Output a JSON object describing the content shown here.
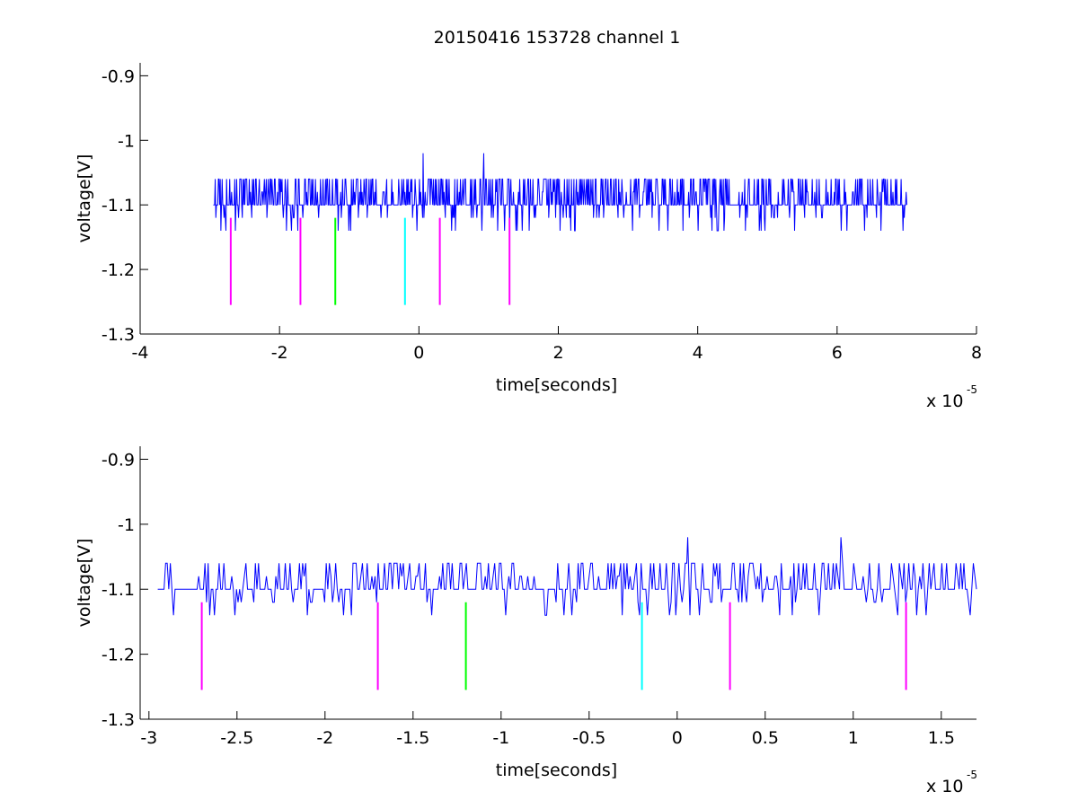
{
  "figure": {
    "title": "20150416 153728 channel 1"
  },
  "chart_data": [
    {
      "type": "line",
      "title": "20150416 153728 channel 1",
      "xlabel": "time[seconds]",
      "ylabel": "voltage[V]",
      "x_multiplier": "x 10",
      "x_exponent": "-5",
      "xlim": [
        -4,
        8
      ],
      "ylim": [
        -1.3,
        -0.88
      ],
      "xticks": [
        -4,
        -2,
        0,
        2,
        4,
        6,
        8
      ],
      "xtick_labels": [
        "-4",
        "-2",
        "0",
        "2",
        "4",
        "6",
        "8"
      ],
      "yticks": [
        -1.3,
        -1.2,
        -1.1,
        -1,
        -0.9
      ],
      "ytick_labels": [
        "-1.3",
        "-1.2",
        "-1.1",
        "-1",
        "-0.9"
      ],
      "grid": false,
      "series": [
        {
          "style": "signal",
          "color": "#0000ff",
          "x_start": -2.95,
          "x_end": 7.0,
          "levels": [
            -1.06,
            -1.08,
            -1.1,
            -1.12,
            -1.14
          ],
          "baseline": -1.1,
          "spikes": [
            {
              "x": 0.06,
              "y": -1.02
            },
            {
              "x": 0.93,
              "y": -1.02
            }
          ]
        }
      ],
      "markers": [
        {
          "x": -2.7,
          "y_top": -1.12,
          "y_bottom": -1.255,
          "color": "#ff00ff"
        },
        {
          "x": -1.7,
          "y_top": -1.12,
          "y_bottom": -1.255,
          "color": "#ff00ff"
        },
        {
          "x": -1.2,
          "y_top": -1.12,
          "y_bottom": -1.255,
          "color": "#00ff00"
        },
        {
          "x": -0.2,
          "y_top": -1.12,
          "y_bottom": -1.255,
          "color": "#00ffff"
        },
        {
          "x": 0.3,
          "y_top": -1.12,
          "y_bottom": -1.255,
          "color": "#ff00ff"
        },
        {
          "x": 1.3,
          "y_top": -1.12,
          "y_bottom": -1.255,
          "color": "#ff00ff"
        }
      ]
    },
    {
      "type": "line",
      "title": "",
      "xlabel": "time[seconds]",
      "ylabel": "voltage[V]",
      "x_multiplier": "x 10",
      "x_exponent": "-5",
      "xlim": [
        -3.05,
        1.7
      ],
      "ylim": [
        -1.3,
        -0.88
      ],
      "xticks": [
        -3,
        -2.5,
        -2,
        -1.5,
        -1,
        -0.5,
        0,
        0.5,
        1,
        1.5
      ],
      "xtick_labels": [
        "-3",
        "-2.5",
        "-2",
        "-1.5",
        "-1",
        "-0.5",
        "0",
        "0.5",
        "1",
        "1.5"
      ],
      "yticks": [
        -1.3,
        -1.2,
        -1.1,
        -1,
        -0.9
      ],
      "ytick_labels": [
        "-1.3",
        "-1.2",
        "-1.1",
        "-1",
        "-0.9"
      ],
      "grid": false,
      "series": [
        {
          "style": "signal",
          "color": "#0000ff",
          "x_start": -2.95,
          "x_end": 1.7,
          "levels": [
            -1.06,
            -1.08,
            -1.1,
            -1.12,
            -1.14
          ],
          "baseline": -1.1,
          "spikes": [
            {
              "x": 0.06,
              "y": -1.02
            },
            {
              "x": 0.93,
              "y": -1.02
            }
          ]
        }
      ],
      "markers": [
        {
          "x": -2.7,
          "y_top": -1.12,
          "y_bottom": -1.255,
          "color": "#ff00ff"
        },
        {
          "x": -1.7,
          "y_top": -1.12,
          "y_bottom": -1.255,
          "color": "#ff00ff"
        },
        {
          "x": -1.2,
          "y_top": -1.12,
          "y_bottom": -1.255,
          "color": "#00ff00"
        },
        {
          "x": -0.2,
          "y_top": -1.12,
          "y_bottom": -1.255,
          "color": "#00ffff"
        },
        {
          "x": 0.3,
          "y_top": -1.12,
          "y_bottom": -1.255,
          "color": "#ff00ff"
        },
        {
          "x": 1.3,
          "y_top": -1.12,
          "y_bottom": -1.255,
          "color": "#ff00ff"
        }
      ]
    }
  ]
}
